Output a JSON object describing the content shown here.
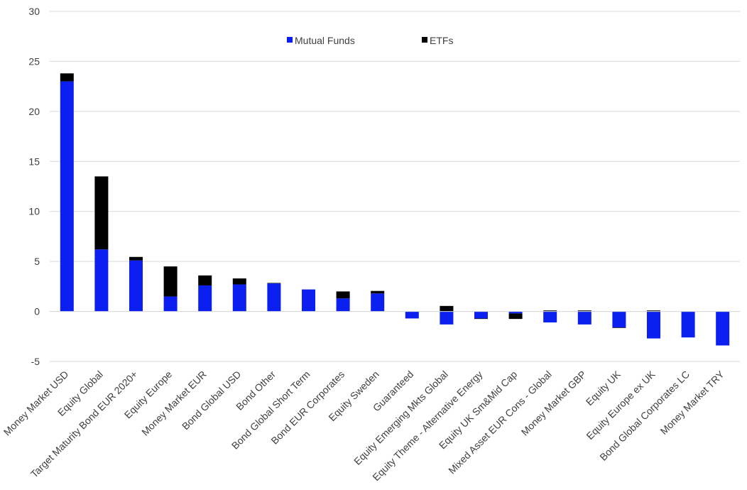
{
  "chart_data": {
    "type": "bar",
    "stacked": true,
    "title": "",
    "xlabel": "",
    "ylabel": "",
    "ylim": [
      -5,
      30
    ],
    "yticks": [
      -5,
      0,
      5,
      10,
      15,
      20,
      25,
      30
    ],
    "grid": true,
    "legend_position": "top",
    "categories": [
      "Money Market USD",
      "Equity Global",
      "Target Maturity Bond EUR 2020+",
      "Equity Europe",
      "Money Market EUR",
      "Bond Global USD",
      "Bond Other",
      "Bond Global Short Term",
      "Bond EUR Corporates",
      "Equity Sweden",
      "Guaranteed",
      "Equity Emerging Mkts Global",
      "Equity Theme - Alternative Energy",
      "Equity UK Sm&Mid Cap",
      "Mixed Asset EUR Cons - Global",
      "Money Market GBP",
      "Equity UK",
      "Equity Europe ex UK",
      "Bond Global Corporates LC",
      "Money Market TRY"
    ],
    "series": [
      {
        "name": "Mutual Funds",
        "color": "#0a1ff0",
        "values": [
          23.0,
          6.2,
          5.1,
          1.5,
          2.6,
          2.7,
          2.8,
          2.2,
          1.3,
          1.8,
          -0.7,
          -1.3,
          -0.7,
          -0.2,
          -1.1,
          -1.3,
          -1.6,
          -2.7,
          -2.6,
          -3.4
        ]
      },
      {
        "name": "ETFs",
        "color": "#000000",
        "values": [
          0.8,
          7.3,
          0.35,
          3.0,
          1.0,
          0.6,
          0.05,
          0.0,
          0.7,
          0.25,
          0.0,
          0.55,
          -0.05,
          -0.55,
          0.1,
          0.1,
          -0.05,
          0.1,
          0.0,
          0.0
        ]
      }
    ]
  }
}
